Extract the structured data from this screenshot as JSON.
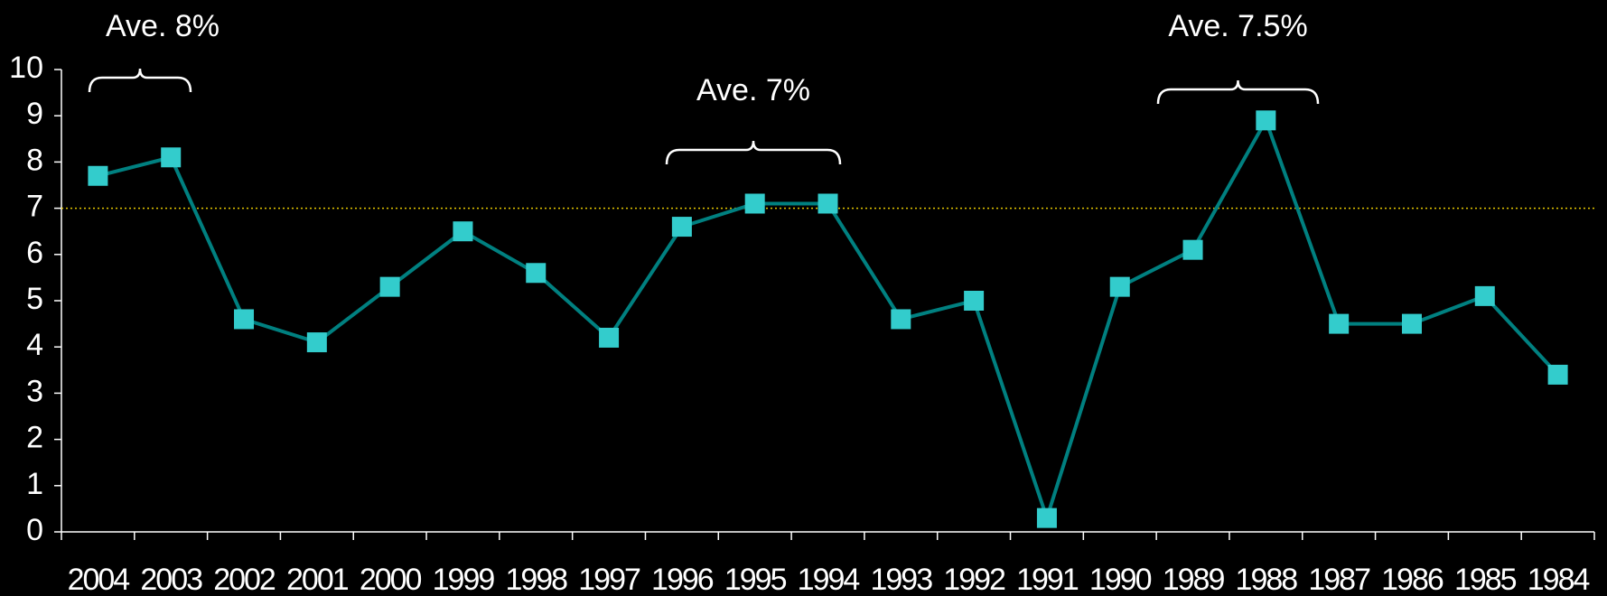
{
  "chart_data": {
    "type": "line",
    "categories": [
      "2004",
      "2003",
      "2002",
      "2001",
      "2000",
      "1999",
      "1998",
      "1997",
      "1996",
      "1995",
      "1994",
      "1993",
      "1992",
      "1991",
      "1990",
      "1989",
      "1988",
      "1987",
      "1986",
      "1985",
      "1984"
    ],
    "series": [
      {
        "color": "#008080",
        "marker_color": "#33cccc",
        "values": [
          7.7,
          8.1,
          4.6,
          4.1,
          5.3,
          6.5,
          5.6,
          4.2,
          6.6,
          7.1,
          7.1,
          4.6,
          5.0,
          0.3,
          5.3,
          6.1,
          8.9,
          4.5,
          4.5,
          5.1,
          3.4
        ]
      }
    ],
    "ylim": [
      0,
      10
    ],
    "yticks": [
      0,
      1,
      2,
      3,
      4,
      5,
      6,
      7,
      8,
      9,
      10
    ],
    "reference_line": {
      "value": 7,
      "color": "#e6c800"
    },
    "annotations": [
      "Ave. 8%",
      "Ave. 7%",
      "Ave. 7.5%"
    ],
    "grid": false
  }
}
